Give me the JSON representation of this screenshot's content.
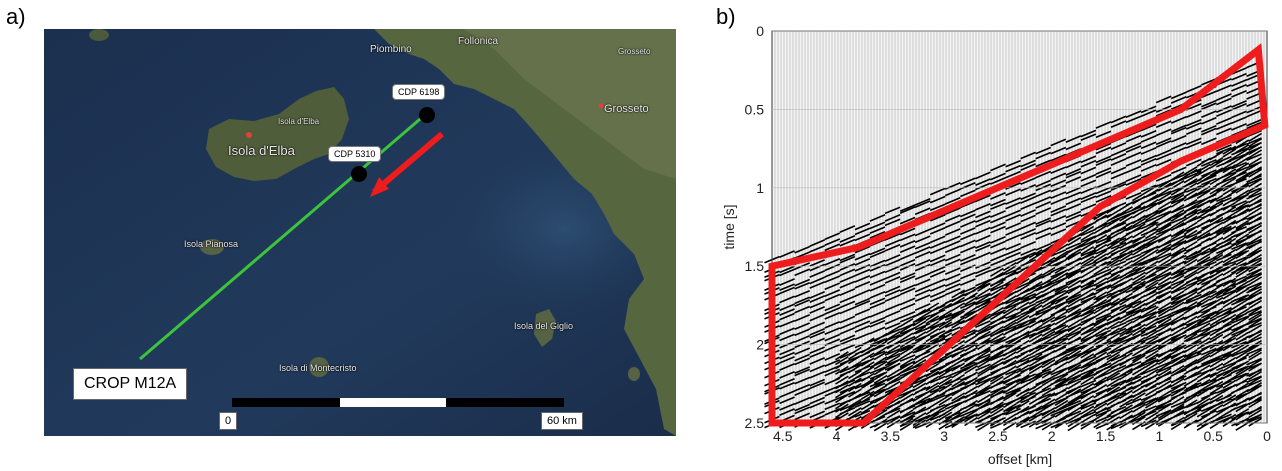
{
  "panel_a": {
    "label": "a)",
    "place_labels": [
      "Piombino",
      "Follonica",
      "Grosseto",
      "Grosseto",
      "Isola d'Elba",
      "Isola d'Elba",
      "Isola Pianosa",
      "Isola di Montecristo",
      "Isola del Giglio"
    ],
    "cdp_markers": [
      {
        "label": "CDP 6198"
      },
      {
        "label": "CDP 5310"
      }
    ],
    "profile_label": "CROP M12A",
    "scale": {
      "start_label": "0",
      "end_label": "60 km"
    },
    "colors": {
      "profile_line": "#3cc43c",
      "arrow": "#ee1c1c",
      "sea": "#1e3453",
      "land": "#5a6b42"
    }
  },
  "panel_b": {
    "label": "b)",
    "axis": {
      "xlabel": "offset [km]",
      "ylabel": "time [s]",
      "x_ticks": [
        "4.5",
        "4",
        "3.5",
        "3",
        "2.5",
        "2",
        "1.5",
        "1",
        "0.5",
        "0"
      ],
      "y_ticks": [
        "0",
        "0.5",
        "1",
        "1.5",
        "2",
        "2.5"
      ],
      "x_range": [
        4.6,
        0
      ],
      "y_range": [
        0,
        2.5
      ],
      "x_reversed": true
    },
    "window_polygon_km_s": [
      [
        4.6,
        1.5
      ],
      [
        4.6,
        2.5
      ],
      [
        3.75,
        2.5
      ],
      [
        1.55,
        1.12
      ],
      [
        0.8,
        0.83
      ],
      [
        0.02,
        0.6
      ],
      [
        0.08,
        0.12
      ],
      [
        0.8,
        0.5
      ],
      [
        3.8,
        1.38
      ]
    ],
    "colors": {
      "window": "#ee1c1c",
      "traces": "#000000"
    }
  }
}
